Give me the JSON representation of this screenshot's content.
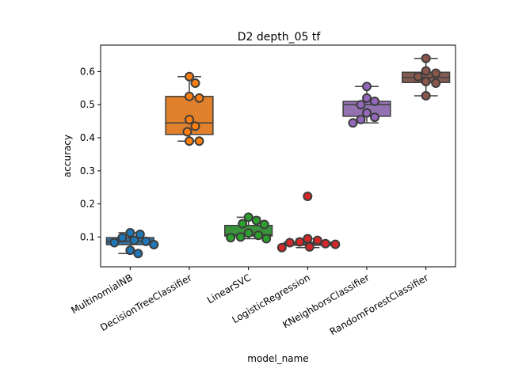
{
  "chart_data": {
    "type": "box",
    "title": "D2 depth_05 tf",
    "xlabel": "model_name",
    "ylabel": "accuracy",
    "ylim": [
      0.01,
      0.68
    ],
    "yticks": [
      0.1,
      0.2,
      0.3,
      0.4,
      0.5,
      0.6
    ],
    "ytick_labels": [
      "0.1",
      "0.2",
      "0.3",
      "0.4",
      "0.5",
      "0.6"
    ],
    "grid": false,
    "categories": [
      "MultinomialNB",
      "DecisionTreeClassifier",
      "LinearSVC",
      "LogisticRegression",
      "KNeighborsClassifier",
      "RandomForestClassifier"
    ],
    "series": [
      {
        "box": {
          "whisker_low": 0.05,
          "q1": 0.077,
          "median": 0.087,
          "q3": 0.098,
          "whisker_high": 0.113
        },
        "outliers": [],
        "points": [
          0.113,
          0.108,
          0.098,
          0.09,
          0.087,
          0.083,
          0.077,
          0.06,
          0.05
        ],
        "box_color": "#3274a1",
        "point_color": "#1f77b4"
      },
      {
        "box": {
          "whisker_low": 0.39,
          "q1": 0.41,
          "median": 0.445,
          "q3": 0.525,
          "whisker_high": 0.585
        },
        "outliers": [],
        "points": [
          0.585,
          0.565,
          0.525,
          0.52,
          0.455,
          0.435,
          0.418,
          0.39,
          0.39
        ],
        "box_color": "#e1812c",
        "point_color": "#ff7f0e"
      },
      {
        "box": {
          "whisker_low": 0.095,
          "q1": 0.103,
          "median": 0.107,
          "q3": 0.135,
          "whisker_high": 0.16
        },
        "outliers": [],
        "points": [
          0.16,
          0.15,
          0.14,
          0.138,
          0.112,
          0.105,
          0.1,
          0.098,
          0.095
        ],
        "box_color": "#3a923a",
        "point_color": "#2ca02c"
      },
      {
        "box": {
          "whisker_low": 0.068,
          "q1": 0.075,
          "median": 0.08,
          "q3": 0.084,
          "whisker_high": 0.095
        },
        "outliers": [
          0.223
        ],
        "points": [
          0.095,
          0.09,
          0.085,
          0.083,
          0.08,
          0.078,
          0.07,
          0.068
        ],
        "box_color": "#c03d3e",
        "point_color": "#d62728"
      },
      {
        "box": {
          "whisker_low": 0.445,
          "q1": 0.465,
          "median": 0.5,
          "q3": 0.51,
          "whisker_high": 0.555
        },
        "outliers": [],
        "points": [
          0.555,
          0.52,
          0.51,
          0.5,
          0.475,
          0.462,
          0.455,
          0.445
        ],
        "box_color": "#9372b2",
        "point_color": "#9467bd"
      },
      {
        "box": {
          "whisker_low": 0.527,
          "q1": 0.567,
          "median": 0.582,
          "q3": 0.598,
          "whisker_high": 0.64
        },
        "outliers": [],
        "points": [
          0.64,
          0.602,
          0.595,
          0.585,
          0.57,
          0.565,
          0.527
        ],
        "box_color": "#845b53",
        "point_color": "#8c564b"
      }
    ]
  }
}
